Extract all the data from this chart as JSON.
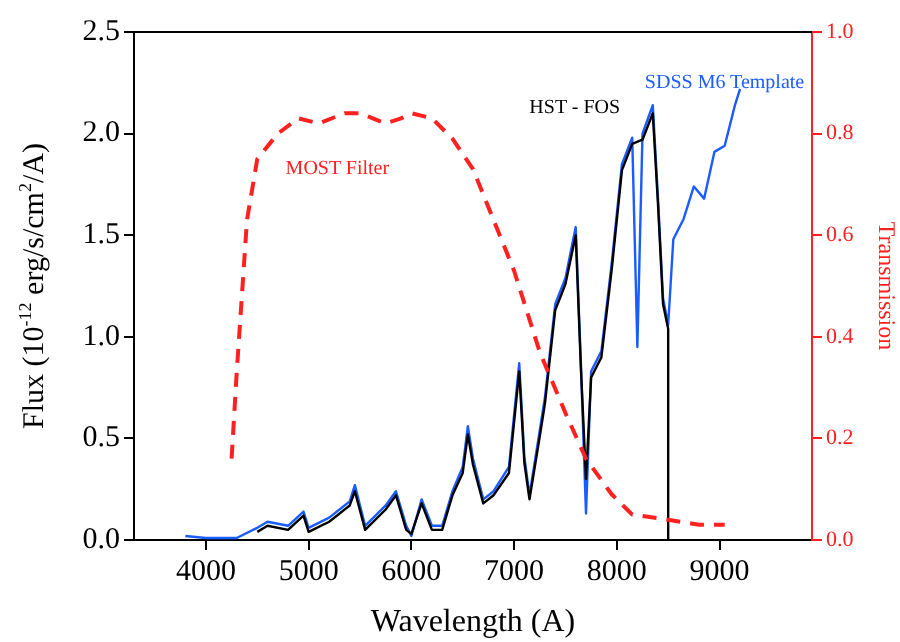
{
  "chart_data": {
    "type": "line",
    "xlabel": "Wavelength (A)",
    "ylabel": "Flux (10$^{-12}$ erg/s/cm$^{2}$/A)",
    "y2label": "Transmission",
    "series": [
      {
        "name": "SDSS M6 Template",
        "color": "#1a5cff",
        "x": [
          3800,
          4000,
          4300,
          4500,
          4600,
          4800,
          4950,
          5000,
          5200,
          5400,
          5450,
          5550,
          5750,
          5850,
          5950,
          6000,
          6100,
          6200,
          6300,
          6400,
          6500,
          6550,
          6600,
          6700,
          6800,
          6950,
          7050,
          7100,
          7150,
          7250,
          7300,
          7400,
          7500,
          7600,
          7650,
          7700,
          7750,
          7850,
          7950,
          8050,
          8150,
          8200,
          8250,
          8350,
          8400,
          8450,
          8500,
          8550,
          8650,
          8750,
          8850,
          8950,
          9050,
          9150,
          9200
        ],
        "values": [
          0.02,
          0.01,
          0.01,
          0.06,
          0.09,
          0.07,
          0.14,
          0.06,
          0.11,
          0.19,
          0.27,
          0.07,
          0.17,
          0.24,
          0.07,
          0.02,
          0.2,
          0.07,
          0.07,
          0.24,
          0.36,
          0.56,
          0.4,
          0.2,
          0.24,
          0.36,
          0.87,
          0.41,
          0.22,
          0.54,
          0.7,
          1.16,
          1.29,
          1.54,
          0.87,
          0.13,
          0.83,
          0.93,
          1.36,
          1.85,
          1.98,
          0.95,
          2.0,
          2.14,
          1.69,
          1.19,
          1.06,
          1.48,
          1.58,
          1.74,
          1.68,
          1.91,
          1.94,
          2.14,
          2.22
        ]
      },
      {
        "name": "HST - FOS",
        "color": "#000000",
        "x": [
          4500,
          4600,
          4800,
          4950,
          5000,
          5200,
          5400,
          5450,
          5550,
          5750,
          5850,
          5950,
          6000,
          6100,
          6200,
          6300,
          6400,
          6500,
          6550,
          6600,
          6700,
          6800,
          6950,
          7050,
          7100,
          7150,
          7250,
          7300,
          7400,
          7500,
          7600,
          7650,
          7700,
          7750,
          7850,
          7950,
          8050,
          8150,
          8250,
          8350,
          8400,
          8450,
          8500,
          8500
        ],
        "values": [
          0.04,
          0.07,
          0.05,
          0.12,
          0.04,
          0.09,
          0.17,
          0.24,
          0.05,
          0.15,
          0.22,
          0.05,
          0.03,
          0.18,
          0.05,
          0.05,
          0.22,
          0.33,
          0.52,
          0.37,
          0.18,
          0.22,
          0.33,
          0.83,
          0.38,
          0.2,
          0.51,
          0.67,
          1.13,
          1.26,
          1.5,
          0.85,
          0.3,
          0.8,
          0.9,
          1.33,
          1.82,
          1.95,
          1.97,
          2.1,
          1.66,
          1.16,
          1.04,
          0
        ]
      },
      {
        "name": "MOST Filter",
        "color": "#ff2020",
        "axis": "y2",
        "line_style": "dashed",
        "x": [
          4250,
          4300,
          4400,
          4500,
          4700,
          4900,
          5100,
          5350,
          5500,
          5750,
          5900,
          6000,
          6200,
          6400,
          6600,
          6800,
          7000,
          7250,
          7500,
          7700,
          7950,
          8150,
          8500,
          8800,
          9050
        ],
        "values": [
          0.16,
          0.33,
          0.63,
          0.75,
          0.8,
          0.83,
          0.82,
          0.84,
          0.84,
          0.82,
          0.83,
          0.84,
          0.83,
          0.79,
          0.73,
          0.63,
          0.53,
          0.37,
          0.25,
          0.16,
          0.09,
          0.05,
          0.04,
          0.03,
          0.03
        ]
      }
    ],
    "xlim": [
      3300,
      9900
    ],
    "xticks": [
      4000,
      5000,
      6000,
      7000,
      8000,
      9000
    ],
    "ylim": [
      0,
      2.5
    ],
    "yticks": [
      {
        "value": 0,
        "label": "0.0"
      },
      {
        "value": 0.5,
        "label": "0.5"
      },
      {
        "value": 1,
        "label": "1.0"
      },
      {
        "value": 1.5,
        "label": "1.5"
      },
      {
        "value": 2,
        "label": "2.0"
      },
      {
        "value": 2.5,
        "label": "2.5"
      }
    ],
    "y2lim": [
      0,
      1
    ],
    "y2ticks": [
      {
        "value": 0,
        "label": "0.0"
      },
      {
        "value": 0.2,
        "label": "0.2"
      },
      {
        "value": 0.4,
        "label": "0.4"
      },
      {
        "value": 0.6,
        "label": "0.6"
      },
      {
        "value": 0.8,
        "label": "0.8"
      },
      {
        "value": 1,
        "label": "1.0"
      }
    ],
    "grid": false,
    "legend": false,
    "marker": "none"
  }
}
